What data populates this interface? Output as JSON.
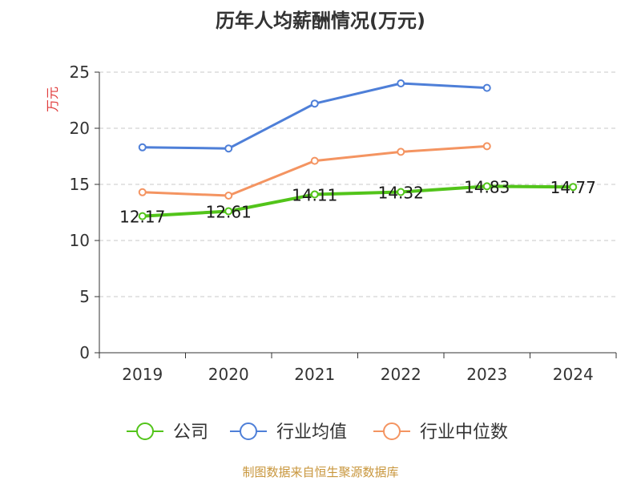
{
  "chart_data": {
    "type": "line",
    "title": "历年人均薪酬情况(万元)",
    "ylabel": "万元",
    "xlabel": "",
    "categories": [
      "2019",
      "2020",
      "2021",
      "2022",
      "2023",
      "2024"
    ],
    "ylim": [
      0,
      25
    ],
    "yticks": [
      0,
      5,
      10,
      15,
      20,
      25
    ],
    "grid": true,
    "legend_position": "bottom",
    "series": [
      {
        "name": "公司",
        "color": "#52c41a",
        "values": [
          12.17,
          12.61,
          14.11,
          14.32,
          14.83,
          14.77
        ],
        "labels": [
          "12.17",
          "12.61",
          "14.11",
          "14.32",
          "14.83",
          "14.77"
        ]
      },
      {
        "name": "行业均值",
        "color": "#4e7fd8",
        "values": [
          18.3,
          18.2,
          22.2,
          24.0,
          23.6,
          null
        ]
      },
      {
        "name": "行业中位数",
        "color": "#f49461",
        "values": [
          14.3,
          14.0,
          17.1,
          17.9,
          18.4,
          null
        ]
      }
    ]
  },
  "source": "制图数据来自恒生聚源数据库"
}
